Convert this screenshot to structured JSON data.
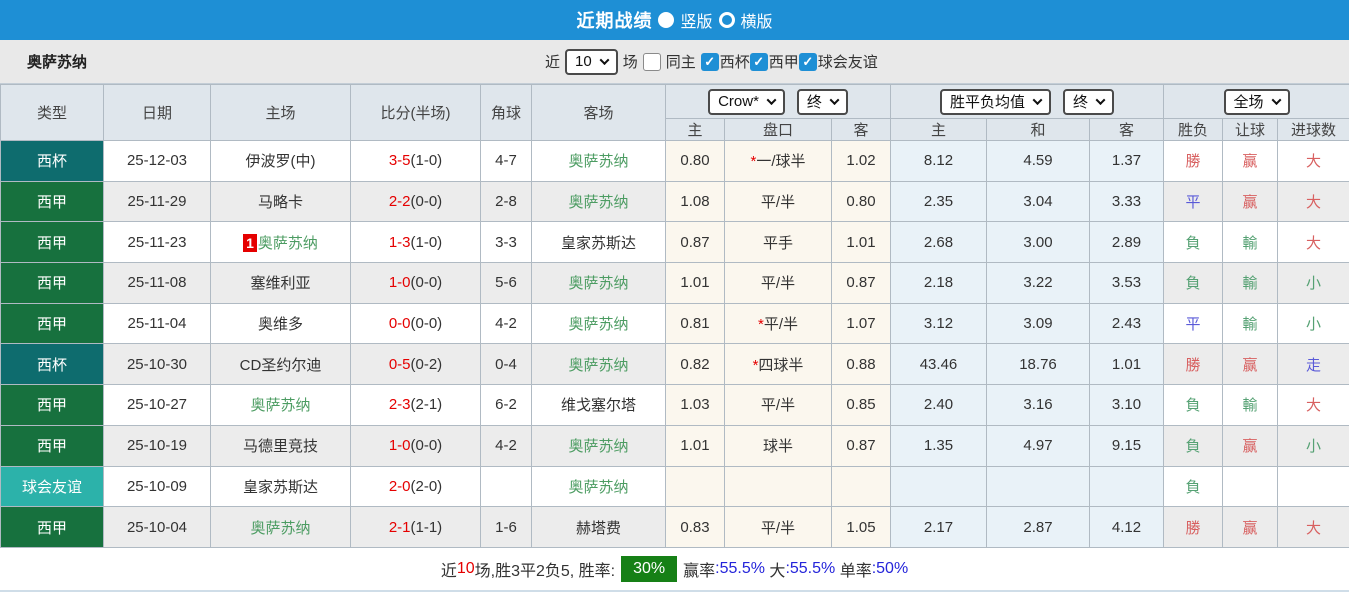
{
  "topbar": {
    "title": "近期战绩",
    "vertical_label": "竖版",
    "horizontal_label": "横版",
    "selected": "竖版"
  },
  "filter": {
    "team": "奥萨苏纳",
    "near": "近",
    "count": "10",
    "games": "场",
    "same_home": "同主",
    "same_home_checked": false,
    "competitions": [
      {
        "label": "西杯",
        "checked": true
      },
      {
        "label": "西甲",
        "checked": true
      },
      {
        "label": "球会友谊",
        "checked": true
      }
    ]
  },
  "header": {
    "selects": {
      "crow": "Crow*",
      "crow_final": "终",
      "avg": "胜平负均值",
      "avg_final": "终",
      "scope": "全场"
    },
    "columns": {
      "type": "类型",
      "date": "日期",
      "home": "主场",
      "score": "比分(半场)",
      "corner": "角球",
      "away": "客场"
    },
    "sub": [
      "主",
      "盘口",
      "客",
      "主",
      "和",
      "客",
      "胜负",
      "让球",
      "进球数"
    ]
  },
  "colors": {
    "topbar_blue": "#1E8FD5",
    "type_bg": {
      "西杯": "#0E6C6E",
      "西甲": "#17713E",
      "球会友谊": "#2CB2AA"
    },
    "score_red": "#E50000",
    "team_green": "#4C9C62",
    "result_red": "#D86060",
    "result_green": "#55A173",
    "result_blue": "#5A5AD8",
    "badge_green": "#168016",
    "crow_bg": "#FBF7EE",
    "avg_bg": "#E9F2F8"
  },
  "table": {
    "rows": [
      {
        "type": "西杯",
        "date": "25-12-03",
        "home": {
          "name": "伊波罗(中)",
          "green": false,
          "badge": ""
        },
        "score": "3-5",
        "half": "(1-0)",
        "corner": "4-7",
        "away": {
          "name": "奥萨苏纳",
          "green": true
        },
        "crow": [
          "0.80",
          "*一/球半",
          "1.02"
        ],
        "avg": [
          "8.12",
          "4.59",
          "1.37"
        ],
        "results": [
          [
            "勝",
            "r"
          ],
          [
            "赢",
            "r"
          ],
          [
            "大",
            "r"
          ]
        ]
      },
      {
        "type": "西甲",
        "date": "25-11-29",
        "home": {
          "name": "马略卡",
          "green": false,
          "badge": ""
        },
        "score": "2-2",
        "half": "(0-0)",
        "corner": "2-8",
        "away": {
          "name": "奥萨苏纳",
          "green": true
        },
        "crow": [
          "1.08",
          "平/半",
          "0.80"
        ],
        "avg": [
          "2.35",
          "3.04",
          "3.33"
        ],
        "results": [
          [
            "平",
            "b"
          ],
          [
            "赢",
            "r"
          ],
          [
            "大",
            "r"
          ]
        ]
      },
      {
        "type": "西甲",
        "date": "25-11-23",
        "home": {
          "name": "奥萨苏纳",
          "green": true,
          "badge": "1"
        },
        "score": "1-3",
        "half": "(1-0)",
        "corner": "3-3",
        "away": {
          "name": "皇家苏斯达",
          "green": false
        },
        "crow": [
          "0.87",
          "平手",
          "1.01"
        ],
        "avg": [
          "2.68",
          "3.00",
          "2.89"
        ],
        "results": [
          [
            "負",
            "g"
          ],
          [
            "輸",
            "g"
          ],
          [
            "大",
            "r"
          ]
        ]
      },
      {
        "type": "西甲",
        "date": "25-11-08",
        "home": {
          "name": "塞维利亚",
          "green": false,
          "badge": ""
        },
        "score": "1-0",
        "half": "(0-0)",
        "corner": "5-6",
        "away": {
          "name": "奥萨苏纳",
          "green": true
        },
        "crow": [
          "1.01",
          "平/半",
          "0.87"
        ],
        "avg": [
          "2.18",
          "3.22",
          "3.53"
        ],
        "results": [
          [
            "負",
            "g"
          ],
          [
            "輸",
            "g"
          ],
          [
            "小",
            "g"
          ]
        ]
      },
      {
        "type": "西甲",
        "date": "25-11-04",
        "home": {
          "name": "奥维多",
          "green": false,
          "badge": ""
        },
        "score": "0-0",
        "half": "(0-0)",
        "corner": "4-2",
        "away": {
          "name": "奥萨苏纳",
          "green": true
        },
        "crow": [
          "0.81",
          "*平/半",
          "1.07"
        ],
        "avg": [
          "3.12",
          "3.09",
          "2.43"
        ],
        "results": [
          [
            "平",
            "b"
          ],
          [
            "輸",
            "g"
          ],
          [
            "小",
            "g"
          ]
        ]
      },
      {
        "type": "西杯",
        "date": "25-10-30",
        "home": {
          "name": "CD圣约尔迪",
          "green": false,
          "badge": ""
        },
        "score": "0-5",
        "half": "(0-2)",
        "corner": "0-4",
        "away": {
          "name": "奥萨苏纳",
          "green": true
        },
        "crow": [
          "0.82",
          "*四球半",
          "0.88"
        ],
        "avg": [
          "43.46",
          "18.76",
          "1.01"
        ],
        "results": [
          [
            "勝",
            "r"
          ],
          [
            "赢",
            "r"
          ],
          [
            "走",
            "b"
          ]
        ]
      },
      {
        "type": "西甲",
        "date": "25-10-27",
        "home": {
          "name": "奥萨苏纳",
          "green": true,
          "badge": ""
        },
        "score": "2-3",
        "half": "(2-1)",
        "corner": "6-2",
        "away": {
          "name": "维戈塞尔塔",
          "green": false
        },
        "crow": [
          "1.03",
          "平/半",
          "0.85"
        ],
        "avg": [
          "2.40",
          "3.16",
          "3.10"
        ],
        "results": [
          [
            "負",
            "g"
          ],
          [
            "輸",
            "g"
          ],
          [
            "大",
            "r"
          ]
        ]
      },
      {
        "type": "西甲",
        "date": "25-10-19",
        "home": {
          "name": "马德里竞技",
          "green": false,
          "badge": ""
        },
        "score": "1-0",
        "half": "(0-0)",
        "corner": "4-2",
        "away": {
          "name": "奥萨苏纳",
          "green": true
        },
        "crow": [
          "1.01",
          "球半",
          "0.87"
        ],
        "avg": [
          "1.35",
          "4.97",
          "9.15"
        ],
        "results": [
          [
            "負",
            "g"
          ],
          [
            "赢",
            "r"
          ],
          [
            "小",
            "g"
          ]
        ]
      },
      {
        "type": "球会友谊",
        "date": "25-10-09",
        "home": {
          "name": "皇家苏斯达",
          "green": false,
          "badge": ""
        },
        "score": "2-0",
        "half": "(2-0)",
        "corner": "",
        "away": {
          "name": "奥萨苏纳",
          "green": true
        },
        "crow": [
          "",
          "",
          ""
        ],
        "avg": [
          "",
          "",
          ""
        ],
        "results": [
          [
            "負",
            "g"
          ],
          [
            "",
            ""
          ],
          [
            "",
            ""
          ]
        ]
      },
      {
        "type": "西甲",
        "date": "25-10-04",
        "home": {
          "name": "奥萨苏纳",
          "green": true,
          "badge": ""
        },
        "score": "2-1",
        "half": "(1-1)",
        "corner": "1-6",
        "away": {
          "name": "赫塔费",
          "green": false
        },
        "crow": [
          "0.83",
          "平/半",
          "1.05"
        ],
        "avg": [
          "2.17",
          "2.87",
          "4.12"
        ],
        "results": [
          [
            "勝",
            "r"
          ],
          [
            "赢",
            "r"
          ],
          [
            "大",
            "r"
          ]
        ]
      }
    ]
  },
  "footer": {
    "parts": [
      {
        "text": "近",
        "style": "d"
      },
      {
        "text": "10",
        "style": "r"
      },
      {
        "text": "场,胜3平2负5, 胜率:",
        "style": "d"
      },
      {
        "text": "30%",
        "style": "badge"
      },
      {
        "text": "赢率",
        "style": "d"
      },
      {
        "text": ":55.5%",
        "style": "b"
      },
      {
        "text": " 大",
        "style": "d"
      },
      {
        "text": ":55.5%",
        "style": "b"
      },
      {
        "text": " 单率",
        "style": "d"
      },
      {
        "text": ":50%",
        "style": "b"
      }
    ]
  }
}
